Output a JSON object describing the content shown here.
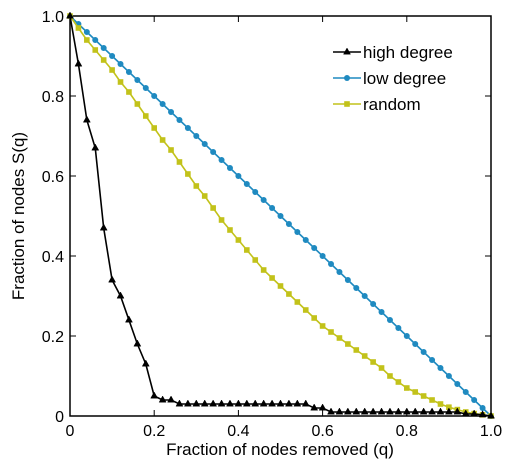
{
  "chart_data": {
    "type": "line",
    "title": "",
    "xlabel": "Fraction of nodes removed (q)",
    "ylabel": "Fraction of nodes S(q)",
    "xlim": [
      0,
      1
    ],
    "ylim": [
      0,
      1
    ],
    "xticks": [
      0,
      0.2,
      0.4,
      0.6,
      0.8,
      1
    ],
    "yticks": [
      0,
      0.2,
      0.4,
      0.6,
      0.8,
      1
    ],
    "xtick_labels": [
      "0",
      "0.2",
      "0.4",
      "0.6",
      "0.8",
      "1.0"
    ],
    "ytick_labels": [
      "0",
      "0.2",
      "0.4",
      "0.6",
      "0.8",
      "1.0"
    ],
    "grid": false,
    "legend_position": "top-right",
    "series": [
      {
        "name": "high degree",
        "color": "#000000",
        "marker": "triangle",
        "x": [
          0,
          0.02,
          0.04,
          0.06,
          0.08,
          0.1,
          0.12,
          0.14,
          0.16,
          0.18,
          0.2,
          0.22,
          0.24,
          0.26,
          0.28,
          0.3,
          0.32,
          0.34,
          0.36,
          0.38,
          0.4,
          0.42,
          0.44,
          0.46,
          0.48,
          0.5,
          0.52,
          0.54,
          0.56,
          0.58,
          0.6,
          0.62,
          0.64,
          0.66,
          0.68,
          0.7,
          0.72,
          0.74,
          0.76,
          0.78,
          0.8,
          0.82,
          0.84,
          0.86,
          0.88,
          0.9,
          0.92,
          0.94,
          0.96,
          0.98,
          1.0
        ],
        "y": [
          1.0,
          0.88,
          0.74,
          0.67,
          0.47,
          0.34,
          0.3,
          0.24,
          0.18,
          0.13,
          0.05,
          0.04,
          0.04,
          0.03,
          0.03,
          0.03,
          0.03,
          0.03,
          0.03,
          0.03,
          0.03,
          0.03,
          0.03,
          0.03,
          0.03,
          0.03,
          0.03,
          0.03,
          0.03,
          0.02,
          0.02,
          0.01,
          0.01,
          0.01,
          0.01,
          0.01,
          0.01,
          0.01,
          0.01,
          0.01,
          0.01,
          0.01,
          0.01,
          0.01,
          0.01,
          0.01,
          0.01,
          0.005,
          0.005,
          0.003,
          0.0
        ]
      },
      {
        "name": "low degree",
        "color": "#1f8ac0",
        "marker": "circle",
        "x": [
          0,
          0.02,
          0.04,
          0.06,
          0.08,
          0.1,
          0.12,
          0.14,
          0.16,
          0.18,
          0.2,
          0.22,
          0.24,
          0.26,
          0.28,
          0.3,
          0.32,
          0.34,
          0.36,
          0.38,
          0.4,
          0.42,
          0.44,
          0.46,
          0.48,
          0.5,
          0.52,
          0.54,
          0.56,
          0.58,
          0.6,
          0.62,
          0.64,
          0.66,
          0.68,
          0.7,
          0.72,
          0.74,
          0.76,
          0.78,
          0.8,
          0.82,
          0.84,
          0.86,
          0.88,
          0.9,
          0.92,
          0.94,
          0.96,
          0.98,
          1.0
        ],
        "y": [
          1.0,
          0.98,
          0.96,
          0.94,
          0.92,
          0.9,
          0.88,
          0.86,
          0.84,
          0.82,
          0.8,
          0.78,
          0.76,
          0.74,
          0.72,
          0.7,
          0.68,
          0.66,
          0.64,
          0.62,
          0.6,
          0.58,
          0.56,
          0.54,
          0.52,
          0.5,
          0.48,
          0.46,
          0.44,
          0.42,
          0.4,
          0.38,
          0.36,
          0.34,
          0.32,
          0.3,
          0.28,
          0.26,
          0.24,
          0.22,
          0.2,
          0.18,
          0.16,
          0.14,
          0.12,
          0.1,
          0.08,
          0.06,
          0.04,
          0.02,
          0.0
        ]
      },
      {
        "name": "random",
        "color": "#c2c21a",
        "marker": "square",
        "x": [
          0,
          0.02,
          0.04,
          0.06,
          0.08,
          0.1,
          0.12,
          0.14,
          0.16,
          0.18,
          0.2,
          0.22,
          0.24,
          0.26,
          0.28,
          0.3,
          0.32,
          0.34,
          0.36,
          0.38,
          0.4,
          0.42,
          0.44,
          0.46,
          0.48,
          0.5,
          0.52,
          0.54,
          0.56,
          0.58,
          0.6,
          0.62,
          0.64,
          0.66,
          0.68,
          0.7,
          0.72,
          0.74,
          0.76,
          0.78,
          0.8,
          0.82,
          0.84,
          0.86,
          0.88,
          0.9,
          0.92,
          0.94,
          0.96,
          0.98,
          1.0
        ],
        "y": [
          1.0,
          0.97,
          0.94,
          0.915,
          0.89,
          0.865,
          0.835,
          0.81,
          0.78,
          0.75,
          0.72,
          0.69,
          0.665,
          0.635,
          0.605,
          0.575,
          0.55,
          0.52,
          0.49,
          0.465,
          0.44,
          0.415,
          0.39,
          0.365,
          0.345,
          0.325,
          0.305,
          0.285,
          0.265,
          0.245,
          0.225,
          0.21,
          0.195,
          0.18,
          0.165,
          0.15,
          0.135,
          0.12,
          0.1,
          0.085,
          0.07,
          0.06,
          0.05,
          0.04,
          0.03,
          0.022,
          0.016,
          0.01,
          0.006,
          0.003,
          0.0
        ]
      }
    ]
  }
}
